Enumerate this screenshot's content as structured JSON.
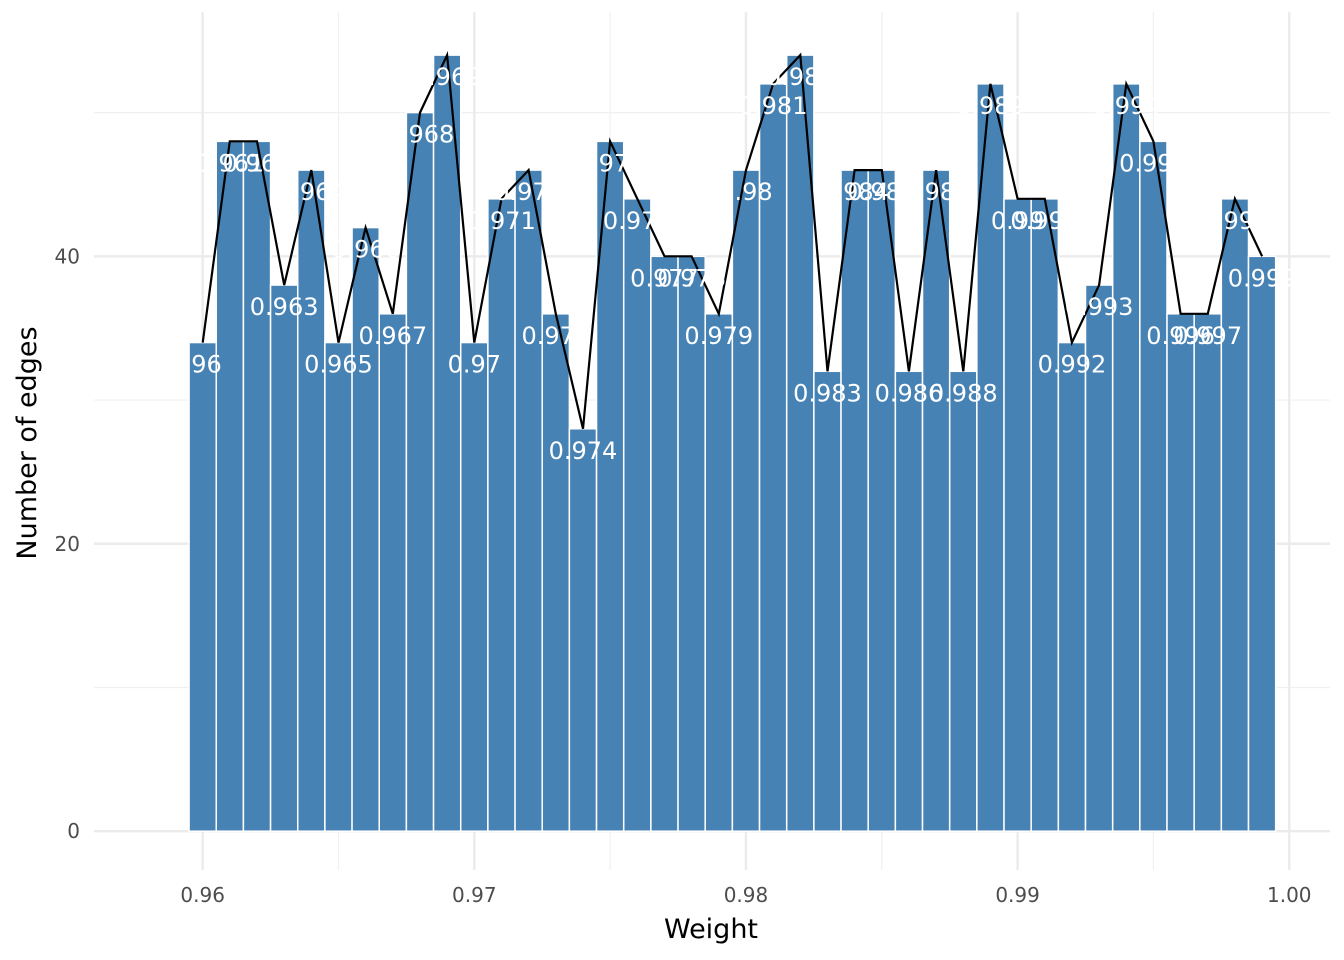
{
  "chart_data": {
    "type": "bar",
    "xlabel": "Weight",
    "ylabel": "Number of edges",
    "xlim": [
      0.956,
      1.0015
    ],
    "ylim": [
      -2.7,
      57
    ],
    "xticks": [
      "0.96",
      "0.97",
      "0.98",
      "0.99",
      "1.00"
    ],
    "yticks": [
      "0",
      "20",
      "40"
    ],
    "grid": true,
    "bar_color": "#4682B4",
    "line_color": "#000000",
    "label_color": "#ffffff",
    "x": [
      0.96,
      0.961,
      0.962,
      0.963,
      0.964,
      0.965,
      0.966,
      0.967,
      0.968,
      0.969,
      0.97,
      0.971,
      0.972,
      0.973,
      0.974,
      0.975,
      0.976,
      0.977,
      0.978,
      0.979,
      0.98,
      0.981,
      0.982,
      0.983,
      0.984,
      0.985,
      0.986,
      0.987,
      0.988,
      0.989,
      0.99,
      0.991,
      0.992,
      0.993,
      0.994,
      0.995,
      0.996,
      0.997,
      0.998,
      0.999
    ],
    "values": [
      34,
      48,
      48,
      38,
      46,
      34,
      42,
      36,
      50,
      54,
      34,
      44,
      46,
      36,
      28,
      48,
      44,
      40,
      40,
      36,
      46,
      52,
      54,
      32,
      46,
      46,
      32,
      46,
      32,
      52,
      44,
      44,
      34,
      38,
      52,
      48,
      36,
      36,
      44,
      40
    ],
    "labels": [
      ".96",
      "0.961",
      "0.962",
      "0.963",
      "0.964",
      "0.965",
      "0.966",
      "0.967",
      "0.968",
      "0.969",
      "0.97",
      "0.971",
      "0.972",
      "0.973",
      "0.974",
      "0.975",
      "0.976",
      "0.977",
      "0.978",
      "0.979",
      "0.98",
      "0.981",
      "0.982",
      "0.983",
      "0.984",
      "0.985",
      "0.986",
      "0.987",
      "0.988",
      "0.989",
      "0.99",
      "0.991",
      "0.992",
      "0.993",
      "0.994",
      "0.995",
      "0.996",
      "0.997",
      "0.998",
      "0.999"
    ]
  }
}
